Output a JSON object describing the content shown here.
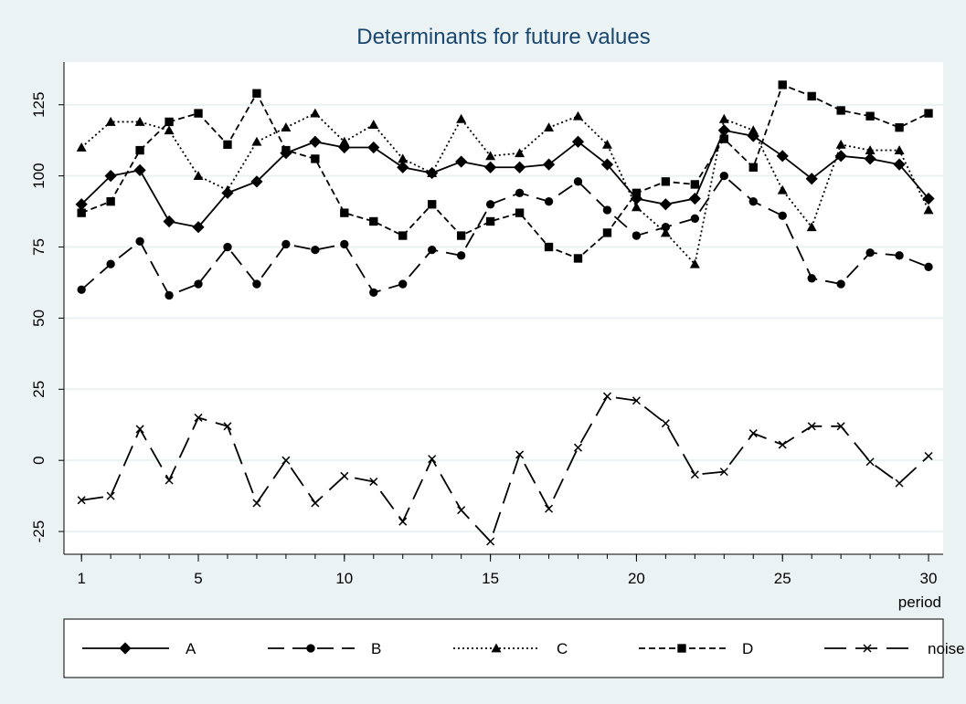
{
  "chart_data": {
    "type": "line",
    "title": "Determinants for future values",
    "x_label": "period",
    "x": [
      1,
      2,
      3,
      4,
      5,
      6,
      7,
      8,
      9,
      10,
      11,
      12,
      13,
      14,
      15,
      16,
      17,
      18,
      19,
      20,
      21,
      22,
      23,
      24,
      25,
      26,
      27,
      28,
      29,
      30
    ],
    "xlim": [
      0.4,
      30.5
    ],
    "xticks": [
      1,
      5,
      10,
      15,
      20,
      25,
      30
    ],
    "ylim": [
      -33,
      140
    ],
    "yticks": [
      -25,
      0,
      25,
      50,
      75,
      100,
      125
    ],
    "grid": true,
    "legend_position": "bottom",
    "series": [
      {
        "name": "A",
        "color": "#000000",
        "marker": "diamond",
        "line_style": "solid",
        "values": [
          90,
          100,
          102,
          84,
          82,
          94,
          98,
          108,
          112,
          110,
          110,
          103,
          101,
          105,
          103,
          103,
          104,
          112,
          104,
          92,
          90,
          92,
          116,
          114,
          107,
          99,
          107,
          106,
          104,
          92
        ]
      },
      {
        "name": "B",
        "color": "#000000",
        "marker": "circle",
        "line_style": "longdash",
        "values": [
          60,
          69,
          77,
          58,
          62,
          75,
          62,
          76,
          74,
          76,
          59,
          62,
          74,
          72,
          90,
          94,
          91,
          98,
          88,
          79,
          82,
          85,
          100,
          91,
          86,
          64,
          62,
          73,
          72,
          68
        ]
      },
      {
        "name": "C",
        "color": "#000000",
        "marker": "triangle",
        "line_style": "dot",
        "values": [
          110,
          119,
          119,
          116,
          100,
          95,
          112,
          117,
          122,
          112,
          118,
          106,
          101,
          120,
          107,
          108,
          117,
          121,
          111,
          89,
          80,
          69,
          120,
          116,
          95,
          82,
          111,
          109,
          109,
          88
        ]
      },
      {
        "name": "D",
        "color": "#000000",
        "marker": "square",
        "line_style": "dash",
        "values": [
          87,
          91,
          109,
          119,
          122,
          111,
          129,
          109,
          106,
          87,
          84,
          79,
          90,
          79,
          84,
          87,
          75,
          71,
          80,
          94,
          98,
          97,
          113,
          103,
          132,
          128,
          123,
          121,
          117,
          122
        ]
      },
      {
        "name": "noise",
        "color": "#000000",
        "marker": "x",
        "line_style": "longdash2",
        "values": [
          -14,
          -12.5,
          11,
          -7,
          15,
          12,
          -15,
          0,
          -15,
          -5.5,
          -7.5,
          -21.5,
          0.5,
          -17.5,
          -28.5,
          2,
          -17,
          4.5,
          22.5,
          21,
          13,
          -5,
          -4,
          9.5,
          5.5,
          12,
          12,
          -0.5,
          -8,
          1.5
        ]
      }
    ]
  }
}
